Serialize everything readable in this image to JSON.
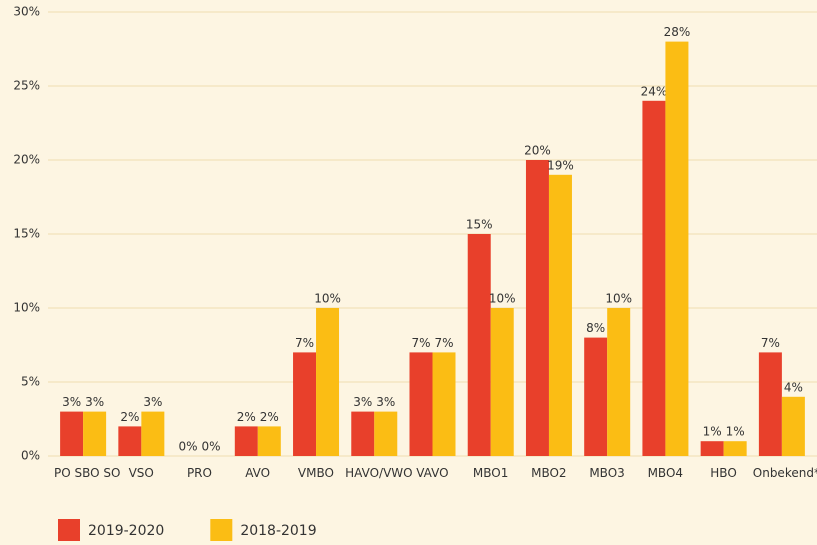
{
  "chart_data": {
    "type": "bar",
    "categories": [
      "PO SBO SO",
      "VSO",
      "PRO",
      "AVO",
      "VMBO",
      "HAVO/VWO",
      "VAVO",
      "MBO1",
      "MBO2",
      "MBO3",
      "MBO4",
      "HBO",
      "Onbekend*"
    ],
    "series": [
      {
        "name": "2019-2020",
        "color": "#e8402b",
        "values": [
          3,
          2,
          0,
          2,
          7,
          3,
          7,
          15,
          20,
          8,
          24,
          1,
          7
        ],
        "value_labels": [
          "3%",
          "2%",
          "0%",
          "2%",
          "7%",
          "3%",
          "7%",
          "15%",
          "20%",
          "8%",
          "24%",
          "1%",
          "7%"
        ]
      },
      {
        "name": "2018-2019",
        "color": "#fbbd14",
        "values": [
          3,
          3,
          0,
          2,
          10,
          3,
          7,
          10,
          19,
          10,
          28,
          1,
          4
        ],
        "value_labels": [
          "3%",
          "3%",
          "0%",
          "2%",
          "10%",
          "3%",
          "7%",
          "10%",
          "19%",
          "10%",
          "28%",
          "1%",
          "4%"
        ]
      }
    ],
    "ylim": [
      0,
      30
    ],
    "yticks": [
      {
        "value": 0,
        "label": "0%"
      },
      {
        "value": 5,
        "label": "5%"
      },
      {
        "value": 10,
        "label": "10%"
      },
      {
        "value": 15,
        "label": "15%"
      },
      {
        "value": 20,
        "label": "20%"
      },
      {
        "value": 25,
        "label": "25%"
      },
      {
        "value": 30,
        "label": "30%"
      }
    ],
    "grid": true,
    "legend": "bottom-left"
  }
}
